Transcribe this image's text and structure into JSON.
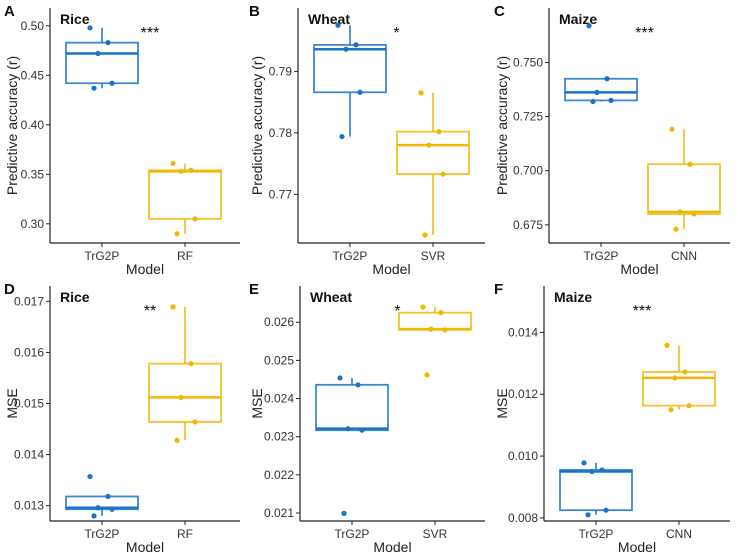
{
  "colors": {
    "TrG2P": "#1a73c9",
    "other": "#f2b705",
    "axis": "#222222"
  },
  "chart_data": [
    {
      "type": "box",
      "panel": "A",
      "title": "Rice",
      "xlabel": "Model",
      "ylabel": "Predictive accuracy (r)",
      "significance": "***",
      "ylim": [
        0.2806,
        0.518
      ],
      "yticks": [
        0.3,
        0.35,
        0.4,
        0.45,
        0.5
      ],
      "ytick_labels": [
        "0.30",
        "0.35",
        "0.40",
        "0.45",
        "0.50"
      ],
      "categories": [
        "TrG2P",
        "RF"
      ],
      "series": [
        {
          "name": "TrG2P",
          "values": [
            0.498,
            0.483,
            0.472,
            0.442,
            0.437
          ]
        },
        {
          "name": "RF",
          "values": [
            0.361,
            0.354,
            0.353,
            0.305,
            0.29
          ]
        }
      ]
    },
    {
      "type": "box",
      "panel": "B",
      "title": "Wheat",
      "xlabel": "Model",
      "ylabel": "Predictive accuracy (r)",
      "significance": "*",
      "ylim": [
        0.7621,
        0.8003
      ],
      "yticks": [
        0.77,
        0.78,
        0.79
      ],
      "ytick_labels": [
        "0.77",
        "0.78",
        "0.79"
      ],
      "categories": [
        "TrG2P",
        "SVR"
      ],
      "series": [
        {
          "name": "TrG2P",
          "values": [
            0.7975,
            0.7943,
            0.7936,
            0.7866,
            0.7794
          ]
        },
        {
          "name": "SVR",
          "values": [
            0.7865,
            0.7802,
            0.778,
            0.7733,
            0.7634
          ]
        }
      ]
    },
    {
      "type": "box",
      "panel": "C",
      "title": "Maize",
      "xlabel": "Model",
      "ylabel": "Predictive accuracy (r)",
      "significance": "***",
      "ylim": [
        0.6666,
        0.7752
      ],
      "yticks": [
        0.675,
        0.7,
        0.725,
        0.75
      ],
      "ytick_labels": [
        "0.675",
        "0.700",
        "0.725",
        "0.750"
      ],
      "categories": [
        "TrG2P",
        "CNN"
      ],
      "series": [
        {
          "name": "TrG2P",
          "values": [
            0.767,
            0.7425,
            0.7362,
            0.7325,
            0.732
          ]
        },
        {
          "name": "CNN",
          "values": [
            0.7192,
            0.703,
            0.681,
            0.68,
            0.673
          ]
        }
      ]
    },
    {
      "type": "box",
      "panel": "D",
      "title": "Rice",
      "xlabel": "Model",
      "ylabel": "MSE",
      "significance": "**",
      "ylim": [
        0.0127,
        0.0173
      ],
      "yticks": [
        0.013,
        0.014,
        0.015,
        0.016,
        0.017
      ],
      "ytick_labels": [
        "0.013",
        "0.014",
        "0.015",
        "0.016",
        "0.017"
      ],
      "categories": [
        "TrG2P",
        "RF"
      ],
      "series": [
        {
          "name": "TrG2P",
          "values": [
            0.01357,
            0.01318,
            0.01296,
            0.01293,
            0.0128
          ]
        },
        {
          "name": "RF",
          "values": [
            0.01689,
            0.01578,
            0.01512,
            0.01464,
            0.01428
          ]
        }
      ]
    },
    {
      "type": "box",
      "panel": "E",
      "title": "Wheat",
      "xlabel": "Model",
      "ylabel": "MSE",
      "significance": "*",
      "ylim": [
        0.02079,
        0.02695
      ],
      "yticks": [
        0.021,
        0.022,
        0.023,
        0.024,
        0.025,
        0.026
      ],
      "ytick_labels": [
        "0.021",
        "0.022",
        "0.023",
        "0.024",
        "0.025",
        "0.026"
      ],
      "categories": [
        "TrG2P",
        "SVR"
      ],
      "series": [
        {
          "name": "TrG2P",
          "values": [
            0.02454,
            0.02436,
            0.02321,
            0.02317,
            0.02099
          ]
        },
        {
          "name": "SVR",
          "values": [
            0.0264,
            0.02625,
            0.02582,
            0.0258,
            0.02462
          ]
        }
      ]
    },
    {
      "type": "box",
      "panel": "F",
      "title": "Maize",
      "xlabel": "Model",
      "ylabel": "MSE",
      "significance": "***",
      "ylim": [
        0.0079,
        0.0155
      ],
      "yticks": [
        0.008,
        0.01,
        0.012,
        0.014
      ],
      "ytick_labels": [
        "0.008",
        "0.010",
        "0.012",
        "0.014"
      ],
      "categories": [
        "TrG2P",
        "CNN"
      ],
      "series": [
        {
          "name": "TrG2P",
          "values": [
            0.00978,
            0.00955,
            0.0095,
            0.00825,
            0.0081
          ]
        },
        {
          "name": "CNN",
          "values": [
            0.01358,
            0.01272,
            0.01253,
            0.01163,
            0.0115
          ]
        }
      ]
    }
  ]
}
